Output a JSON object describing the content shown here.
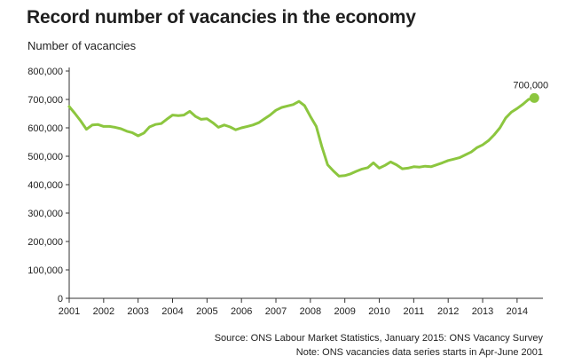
{
  "page": {
    "title": "Record number of vacancies in the economy",
    "source": "Source: ONS Labour Market Statistics, January 2015: ONS Vacancy Survey",
    "note": "Note: ONS vacancies data series starts in Apr-June 2001"
  },
  "colors": {
    "line": "#8cc63f",
    "axis": "#333333",
    "background": "#ffffff"
  },
  "chart_data": {
    "type": "line",
    "title": "Record number of vacancies in the economy",
    "ylabel": "Number of vacancies",
    "xlabel": "",
    "xlim": [
      2001,
      2014.75
    ],
    "ylim": [
      0,
      800000
    ],
    "grid": false,
    "legend": "none",
    "x_ticks": [
      2001,
      2002,
      2003,
      2004,
      2005,
      2006,
      2007,
      2008,
      2009,
      2010,
      2011,
      2012,
      2013,
      2014
    ],
    "x_tick_labels": [
      "2001",
      "2002",
      "2003",
      "2004",
      "2005",
      "2006",
      "2007",
      "2008",
      "2009",
      "2010",
      "2011",
      "2012",
      "2013",
      "2014"
    ],
    "y_ticks": [
      0,
      100000,
      200000,
      300000,
      400000,
      500000,
      600000,
      700000,
      800000
    ],
    "y_tick_labels": [
      "0",
      "100,000",
      "200,000",
      "300,000",
      "400,000",
      "500,000",
      "600,000",
      "700,000",
      "800,000"
    ],
    "series": [
      {
        "x": [
          2001.0,
          2001.17,
          2001.33,
          2001.5,
          2001.67,
          2001.83,
          2002.0,
          2002.17,
          2002.33,
          2002.5,
          2002.67,
          2002.83,
          2003.0,
          2003.17,
          2003.33,
          2003.5,
          2003.67,
          2003.83,
          2004.0,
          2004.17,
          2004.33,
          2004.5,
          2004.67,
          2004.83,
          2005.0,
          2005.17,
          2005.33,
          2005.5,
          2005.67,
          2005.83,
          2006.0,
          2006.17,
          2006.33,
          2006.5,
          2006.67,
          2006.83,
          2007.0,
          2007.17,
          2007.33,
          2007.5,
          2007.67,
          2007.83,
          2008.0,
          2008.17,
          2008.33,
          2008.5,
          2008.67,
          2008.83,
          2009.0,
          2009.17,
          2009.33,
          2009.5,
          2009.67,
          2009.83,
          2010.0,
          2010.17,
          2010.33,
          2010.5,
          2010.67,
          2010.83,
          2011.0,
          2011.17,
          2011.33,
          2011.5,
          2011.67,
          2011.83,
          2012.0,
          2012.17,
          2012.33,
          2012.5,
          2012.67,
          2012.83,
          2013.0,
          2013.17,
          2013.33,
          2013.5,
          2013.67,
          2013.83,
          2014.0,
          2014.17,
          2014.33,
          2014.5
        ],
        "values": [
          675000,
          650000,
          625000,
          595000,
          610000,
          612000,
          605000,
          605000,
          602000,
          597000,
          588000,
          583000,
          572000,
          582000,
          603000,
          612000,
          615000,
          630000,
          645000,
          643000,
          645000,
          658000,
          640000,
          630000,
          632000,
          618000,
          602000,
          610000,
          603000,
          593000,
          600000,
          605000,
          610000,
          618000,
          632000,
          645000,
          662000,
          672000,
          677000,
          682000,
          693000,
          678000,
          640000,
          605000,
          535000,
          470000,
          448000,
          430000,
          432000,
          438000,
          447000,
          455000,
          460000,
          477000,
          458000,
          468000,
          480000,
          470000,
          456000,
          458000,
          463000,
          462000,
          465000,
          463000,
          470000,
          477000,
          485000,
          490000,
          495000,
          505000,
          515000,
          530000,
          540000,
          555000,
          575000,
          600000,
          635000,
          655000,
          668000,
          683000,
          700000,
          705000
        ]
      }
    ],
    "annotations": [
      {
        "text": "700,000",
        "x": 2014.5,
        "y": 705000
      }
    ]
  }
}
